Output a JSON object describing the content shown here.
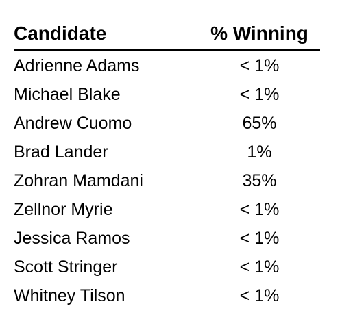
{
  "chart_data": {
    "type": "table",
    "columns": [
      "Candidate",
      "% Winning"
    ],
    "rows": [
      {
        "candidate": "Adrienne Adams",
        "winning": "< 1%"
      },
      {
        "candidate": "Michael Blake",
        "winning": "< 1%"
      },
      {
        "candidate": "Andrew Cuomo",
        "winning": "65%"
      },
      {
        "candidate": "Brad Lander",
        "winning": "1%"
      },
      {
        "candidate": "Zohran Mamdani",
        "winning": "35%"
      },
      {
        "candidate": "Zellnor Myrie",
        "winning": "< 1%"
      },
      {
        "candidate": "Jessica Ramos",
        "winning": "< 1%"
      },
      {
        "candidate": "Scott Stringer",
        "winning": "< 1%"
      },
      {
        "candidate": "Whitney Tilson",
        "winning": "< 1%"
      }
    ]
  }
}
